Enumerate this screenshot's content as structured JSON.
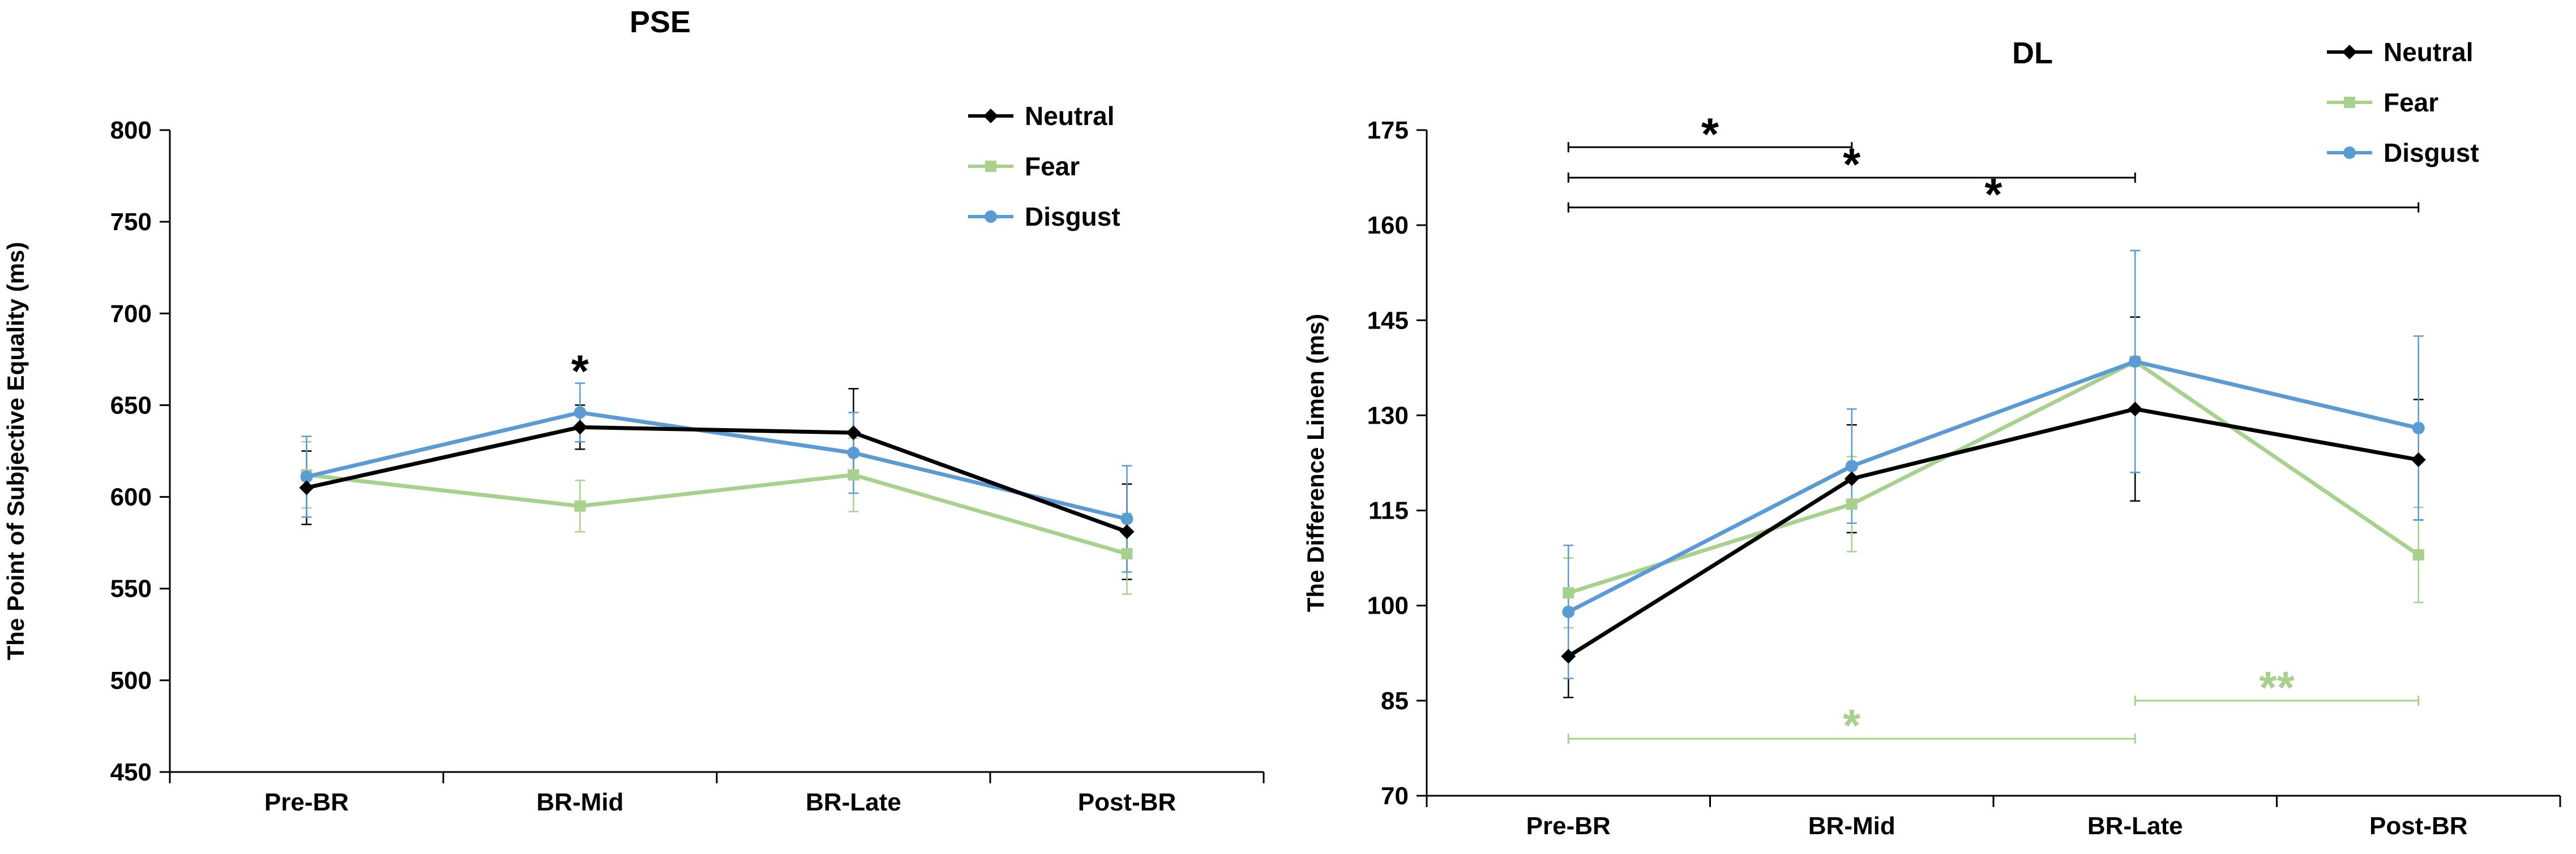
{
  "figure": {
    "description_free": true
  },
  "colors": {
    "neutral": "#000000",
    "fear": "#a9d18e",
    "disgust": "#5b9bd5",
    "axis": "#000000"
  },
  "chart_data": [
    {
      "type": "line",
      "title": "PSE",
      "ylabel": "The Point of Subjective Equality (ms)",
      "xlabel": "",
      "categories": [
        "Pre-BR",
        "BR-Mid",
        "BR-Late",
        "Post-BR"
      ],
      "ylim": [
        450,
        800
      ],
      "yticks": [
        450,
        500,
        550,
        600,
        650,
        700,
        750,
        800
      ],
      "legend_position": "top-right",
      "series": [
        {
          "name": "Neutral",
          "marker": "diamond",
          "values": [
            605,
            638,
            635,
            581
          ],
          "errors": [
            20,
            12,
            24,
            26
          ]
        },
        {
          "name": "Fear",
          "marker": "square",
          "values": [
            612,
            595,
            612,
            569
          ],
          "errors": [
            18,
            14,
            20,
            22
          ]
        },
        {
          "name": "Disgust",
          "marker": "circle",
          "values": [
            611,
            646,
            624,
            588
          ],
          "errors": [
            22,
            16,
            22,
            29
          ]
        }
      ],
      "annotations": [
        {
          "text": "*",
          "category": "BR-Mid",
          "y": 671,
          "color": "black"
        }
      ]
    },
    {
      "type": "line",
      "title": "DL",
      "ylabel": "The Difference Limen (ms)",
      "xlabel": "",
      "categories": [
        "Pre-BR",
        "BR-Mid",
        "BR-Late",
        "Post-BR"
      ],
      "ylim": [
        70,
        175
      ],
      "yticks": [
        70,
        85,
        100,
        115,
        130,
        145,
        160,
        175
      ],
      "legend_position": "top-right",
      "series": [
        {
          "name": "Neutral",
          "marker": "diamond",
          "values": [
            92,
            120,
            131,
            123
          ],
          "errors": [
            6.5,
            8.5,
            14.5,
            9.5
          ]
        },
        {
          "name": "Fear",
          "marker": "square",
          "values": [
            102,
            116,
            138.5,
            108
          ],
          "errors": [
            5.5,
            7.5,
            17.5,
            7.5
          ]
        },
        {
          "name": "Disgust",
          "marker": "circle",
          "values": [
            99,
            122,
            138.5,
            128
          ],
          "errors": [
            10.5,
            9,
            17.5,
            14.5
          ]
        }
      ],
      "significance_bars": [
        {
          "from": "Pre-BR",
          "to": "BR-Mid",
          "y": 172.3,
          "label": "*",
          "color": "black"
        },
        {
          "from": "Pre-BR",
          "to": "BR-Late",
          "y": 167.5,
          "label": "*",
          "color": "black"
        },
        {
          "from": "Pre-BR",
          "to": "Post-BR",
          "y": 162.8,
          "label": "*",
          "color": "black"
        },
        {
          "from": "Pre-BR",
          "to": "BR-Late",
          "y": 79,
          "label": "*",
          "color": "fear"
        },
        {
          "from": "BR-Late",
          "to": "Post-BR",
          "y": 85,
          "label": "**",
          "color": "fear"
        }
      ]
    }
  ]
}
